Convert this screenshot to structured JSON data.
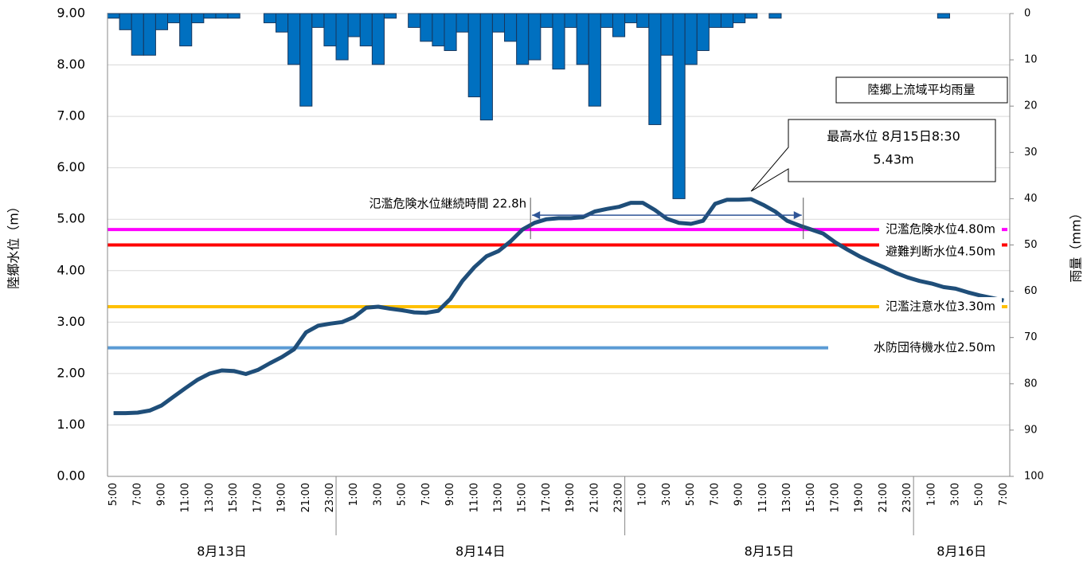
{
  "chart_data": {
    "type": "bar-line",
    "categories": [
      "5:00",
      null,
      "7:00",
      null,
      "9:00",
      null,
      "11:00",
      null,
      "13:00",
      null,
      "15:00",
      null,
      "17:00",
      null,
      "19:00",
      null,
      "21:00",
      null,
      "23:00",
      null,
      "1:00",
      null,
      "3:00",
      null,
      "5:00",
      null,
      "7:00",
      null,
      "9:00",
      null,
      "11:00",
      null,
      "13:00",
      null,
      "15:00",
      null,
      "17:00",
      null,
      "19:00",
      null,
      "21:00",
      null,
      "23:00",
      null,
      "1:00",
      null,
      "3:00",
      null,
      "5:00",
      null,
      "7:00",
      null,
      "9:00",
      null,
      "11:00",
      null,
      "13:00",
      null,
      "15:00",
      null,
      "17:00",
      null,
      "19:00",
      null,
      "21:00",
      null,
      "23:00",
      null,
      "1:00",
      null,
      "3:00",
      null,
      "5:00",
      null,
      "7:00"
    ],
    "date_groups": [
      {
        "label": "8月13日",
        "start": 0,
        "end": 18
      },
      {
        "label": "8月14日",
        "start": 19,
        "end": 42
      },
      {
        "label": "8月15日",
        "start": 43,
        "end": 66
      },
      {
        "label": "8月16日",
        "start": 67,
        "end": 74
      }
    ],
    "series": [
      {
        "name": "陸郷上流域平均雨量",
        "axis": "y2",
        "color": "#0070c0",
        "values": [
          1,
          3.5,
          9,
          9,
          3.5,
          2,
          7,
          2,
          1,
          1,
          1,
          0,
          0,
          2,
          4,
          11,
          20,
          3,
          7,
          10,
          5,
          7,
          11,
          1,
          0,
          3,
          6,
          7,
          8,
          4,
          18,
          23,
          4,
          6,
          11,
          10,
          3,
          12,
          3,
          11,
          20,
          3,
          5,
          2,
          3,
          24,
          9,
          40,
          11,
          8,
          3,
          3,
          2,
          1,
          0,
          1,
          0,
          0,
          0,
          0,
          0,
          0,
          0,
          0,
          0,
          0,
          0,
          0,
          0,
          1,
          0,
          0,
          0,
          0,
          0
        ]
      },
      {
        "color": "#1f4e79",
        "values": [
          1.23,
          1.23,
          1.24,
          1.28,
          1.38,
          1.55,
          1.72,
          1.88,
          2.0,
          2.06,
          2.05,
          1.99,
          2.07,
          2.2,
          2.32,
          2.47,
          2.8,
          2.93,
          2.97,
          3.0,
          3.1,
          3.28,
          3.3,
          3.26,
          3.23,
          3.19,
          3.18,
          3.22,
          3.45,
          3.8,
          4.07,
          4.28,
          4.38,
          4.57,
          4.8,
          4.93,
          5.0,
          5.02,
          5.02,
          5.04,
          5.15,
          5.2,
          5.24,
          5.32,
          5.32,
          5.18,
          5.01,
          4.93,
          4.91,
          4.97,
          5.3,
          5.38,
          5.38,
          5.39,
          5.28,
          5.15,
          4.97,
          4.88,
          4.8,
          4.72,
          4.55,
          4.41,
          4.28,
          4.17,
          4.07,
          3.96,
          3.87,
          3.8,
          3.75,
          3.68,
          3.65,
          3.58,
          3.52,
          3.47,
          3.42
        ]
      }
    ],
    "reference_lines": [
      {
        "label": "氾濫危険水位4.80m",
        "value": 4.8,
        "color": "#ff00ff"
      },
      {
        "label": "避難判断水位4.50m",
        "value": 4.5,
        "color": "#ff0000"
      },
      {
        "label": "氾濫注意水位3.30m",
        "value": 3.3,
        "color": "#ffc000"
      },
      {
        "label": "水防団待機水位2.50m",
        "value": 2.5,
        "color": "#5b9bd5"
      }
    ],
    "peak_annotation": [
      "最高水位 8月15日8:30",
      "5.43m"
    ],
    "duration_label": "氾濫危険水位継続時間 22.8h",
    "ylabel": "陸郷水位（m）",
    "y2label": "雨量（mm）",
    "ylim": [
      0,
      9
    ],
    "yticks": [
      {
        "value": 0,
        "label": "0.00"
      },
      {
        "value": 1,
        "label": "1.00"
      },
      {
        "value": 2,
        "label": "2.00"
      },
      {
        "value": 3,
        "label": "3.00"
      },
      {
        "value": 4,
        "label": "4.00"
      },
      {
        "value": 5,
        "label": "5.00"
      },
      {
        "value": 6,
        "label": "6.00"
      },
      {
        "value": 7,
        "label": "7.00"
      },
      {
        "value": 8,
        "label": "8.00"
      },
      {
        "value": 9,
        "label": "9.00"
      }
    ],
    "y2lim": [
      0,
      100
    ],
    "y2ticks": [
      0,
      10,
      20,
      30,
      40,
      50,
      60,
      70,
      80,
      90,
      100
    ],
    "y2_inverted": true,
    "grid": true
  }
}
